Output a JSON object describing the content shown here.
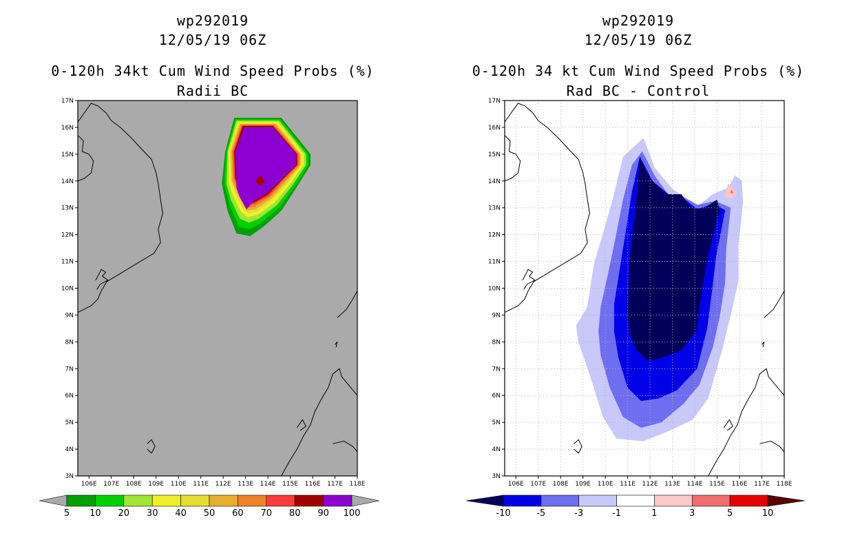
{
  "chart_data": [
    {
      "type": "filled-contour-map",
      "storm_id": "wp292019",
      "datetime": "12/05/19 06Z",
      "title": "0-120h 34kt Cum Wind Speed Probs (%)",
      "subtitle": "Radii BC",
      "xlabel": "",
      "ylabel": "",
      "xlim": [
        105.5,
        118
      ],
      "ylim": [
        3,
        17
      ],
      "x_ticks": [
        "106E",
        "107E",
        "108E",
        "109E",
        "110E",
        "111E",
        "112E",
        "113E",
        "114E",
        "115E",
        "116E",
        "117E",
        "118E"
      ],
      "y_ticks": [
        "3N",
        "4N",
        "5N",
        "6N",
        "7N",
        "8N",
        "9N",
        "10N",
        "11N",
        "12N",
        "13N",
        "14N",
        "15N",
        "16N",
        "17N"
      ],
      "background": "#aaaaaa",
      "colorbar": {
        "labels": [
          "5",
          "10",
          "20",
          "30",
          "40",
          "50",
          "60",
          "70",
          "80",
          "90",
          "100"
        ],
        "colors": [
          "#00a000",
          "#00d000",
          "#a0e632",
          "#f0f028",
          "#e6dc32",
          "#e6af2d",
          "#f08228",
          "#fa3c3c",
          "#a00000",
          "#8c00d2"
        ],
        "under_color": "#aaaaaa",
        "over_color": "#aaaaaa"
      },
      "regions": [
        {
          "level": 5,
          "color": "#00a000",
          "points": [
            [
              112.1,
              15.1
            ],
            [
              112.5,
              16.35
            ],
            [
              114.6,
              16.35
            ],
            [
              115.9,
              15.0
            ],
            [
              115.9,
              14.6
            ],
            [
              115.3,
              13.8
            ],
            [
              114.6,
              12.9
            ],
            [
              113.8,
              12.3
            ],
            [
              113.2,
              11.95
            ],
            [
              112.6,
              12.05
            ],
            [
              112.2,
              12.9
            ],
            [
              111.95,
              13.9
            ]
          ]
        },
        {
          "level": 10,
          "color": "#00d000",
          "points": [
            [
              112.15,
              15.1
            ],
            [
              112.55,
              16.3
            ],
            [
              114.55,
              16.3
            ],
            [
              115.8,
              15.0
            ],
            [
              115.8,
              14.6
            ],
            [
              115.2,
              13.8
            ],
            [
              114.5,
              13.0
            ],
            [
              113.7,
              12.45
            ],
            [
              113.2,
              12.2
            ],
            [
              112.7,
              12.3
            ],
            [
              112.3,
              13.1
            ],
            [
              112.05,
              13.9
            ]
          ]
        },
        {
          "level": 20,
          "color": "#a0e632",
          "points": [
            [
              112.2,
              15.1
            ],
            [
              112.6,
              16.25
            ],
            [
              114.5,
              16.25
            ],
            [
              115.7,
              15.0
            ],
            [
              115.7,
              14.6
            ],
            [
              115.1,
              13.85
            ],
            [
              114.4,
              13.1
            ],
            [
              113.6,
              12.6
            ],
            [
              113.15,
              12.45
            ],
            [
              112.75,
              12.6
            ],
            [
              112.35,
              13.3
            ],
            [
              112.15,
              13.9
            ]
          ]
        },
        {
          "level": 30,
          "color": "#f0f028",
          "points": [
            [
              112.25,
              15.1
            ],
            [
              112.65,
              16.2
            ],
            [
              114.45,
              16.2
            ],
            [
              115.6,
              15.0
            ],
            [
              115.6,
              14.6
            ],
            [
              115.0,
              13.9
            ],
            [
              114.3,
              13.2
            ],
            [
              113.55,
              12.75
            ],
            [
              113.1,
              12.65
            ],
            [
              112.8,
              12.85
            ],
            [
              112.45,
              13.45
            ],
            [
              112.25,
              13.95
            ]
          ]
        },
        {
          "level": 40,
          "color": "#e6dc32",
          "points": [
            [
              112.3,
              15.1
            ],
            [
              112.7,
              16.15
            ],
            [
              114.4,
              16.15
            ],
            [
              115.5,
              15.0
            ],
            [
              115.5,
              14.6
            ],
            [
              114.9,
              13.95
            ],
            [
              114.2,
              13.3
            ],
            [
              113.5,
              12.85
            ],
            [
              113.1,
              12.8
            ],
            [
              112.85,
              13.0
            ],
            [
              112.55,
              13.55
            ],
            [
              112.35,
              14.0
            ]
          ]
        },
        {
          "level": 50,
          "color": "#e6af2d",
          "points": [
            [
              112.35,
              15.1
            ],
            [
              112.75,
              16.12
            ],
            [
              114.35,
              16.12
            ],
            [
              115.45,
              15.0
            ],
            [
              115.45,
              14.6
            ],
            [
              114.85,
              14.0
            ],
            [
              114.15,
              13.35
            ],
            [
              113.45,
              12.95
            ],
            [
              113.05,
              12.9
            ],
            [
              112.9,
              13.1
            ],
            [
              112.6,
              13.6
            ],
            [
              112.4,
              14.0
            ]
          ]
        },
        {
          "level": 60,
          "color": "#f08228",
          "points": [
            [
              112.4,
              15.1
            ],
            [
              112.8,
              16.1
            ],
            [
              114.3,
              16.1
            ],
            [
              115.4,
              15.0
            ],
            [
              115.4,
              14.6
            ],
            [
              114.8,
              14.05
            ],
            [
              114.1,
              13.4
            ],
            [
              113.4,
              13.05
            ],
            [
              113.05,
              13.0
            ],
            [
              112.95,
              13.2
            ],
            [
              112.65,
              13.65
            ],
            [
              112.45,
              14.05
            ]
          ]
        },
        {
          "level": 70,
          "color": "#fa3c3c",
          "points": [
            [
              112.45,
              15.1
            ],
            [
              112.85,
              16.07
            ],
            [
              114.25,
              16.07
            ],
            [
              115.35,
              15.0
            ],
            [
              115.35,
              14.6
            ],
            [
              114.75,
              14.1
            ],
            [
              114.05,
              13.45
            ],
            [
              113.4,
              13.15
            ],
            [
              113.05,
              13.1
            ],
            [
              113.0,
              13.3
            ],
            [
              112.7,
              13.7
            ],
            [
              112.5,
              14.1
            ]
          ]
        },
        {
          "level": 80,
          "color": "#a00000",
          "points": [
            [
              112.5,
              15.1
            ],
            [
              112.88,
              16.05
            ],
            [
              114.22,
              16.05
            ],
            [
              115.3,
              15.0
            ],
            [
              115.3,
              14.6
            ],
            [
              114.72,
              14.12
            ],
            [
              114.0,
              13.5
            ],
            [
              113.38,
              13.2
            ],
            [
              113.05,
              13.15
            ],
            [
              113.02,
              13.35
            ],
            [
              112.72,
              13.75
            ],
            [
              112.55,
              14.1
            ]
          ]
        },
        {
          "level": 90,
          "color": "#8c00d2",
          "points": [
            [
              112.55,
              15.1
            ],
            [
              112.95,
              16.0
            ],
            [
              114.2,
              16.0
            ],
            [
              115.25,
              15.0
            ],
            [
              115.25,
              14.6
            ],
            [
              114.7,
              14.15
            ],
            [
              113.95,
              13.55
            ],
            [
              113.35,
              13.25
            ],
            [
              113.05,
              12.95
            ],
            [
              112.75,
              13.4
            ],
            [
              112.6,
              13.75
            ],
            [
              112.6,
              14.1
            ]
          ]
        },
        {
          "level": 100,
          "color": "#a00000",
          "points": [
            [
              113.65,
              14.2
            ],
            [
              113.85,
              14.0
            ],
            [
              113.65,
              13.8
            ],
            [
              113.45,
              14.0
            ]
          ]
        }
      ]
    },
    {
      "type": "filled-contour-map",
      "storm_id": "wp292019",
      "datetime": "12/05/19 06Z",
      "title": "0-120h 34 kt Cum Wind Speed Probs (%)",
      "subtitle": "Rad BC - Control",
      "xlabel": "",
      "ylabel": "",
      "xlim": [
        105.5,
        118
      ],
      "ylim": [
        3,
        17
      ],
      "x_ticks": [
        "106E",
        "107E",
        "108E",
        "109E",
        "110E",
        "111E",
        "112E",
        "113E",
        "114E",
        "115E",
        "116E",
        "117E",
        "118E"
      ],
      "y_ticks": [
        "3N",
        "4N",
        "5N",
        "6N",
        "7N",
        "8N",
        "9N",
        "10N",
        "11N",
        "12N",
        "13N",
        "14N",
        "15N",
        "16N",
        "17N"
      ],
      "background": "#ffffff",
      "colorbar": {
        "labels": [
          "-10",
          "-5",
          "-3",
          "-1",
          "1",
          "3",
          "5",
          "10"
        ],
        "colors": [
          "#0000e6",
          "#6e6ef0",
          "#c8c8fa",
          "#ffffff",
          "#fac8c8",
          "#f06e6e",
          "#e60000"
        ],
        "under_color": "#00005a",
        "over_color": "#5a0000"
      },
      "regions": [
        {
          "level": -1,
          "color": "#c8c8fa",
          "points": [
            [
              109.2,
              9.3
            ],
            [
              109.5,
              10.9
            ],
            [
              110.3,
              13.2
            ],
            [
              110.8,
              14.9
            ],
            [
              111.7,
              15.6
            ],
            [
              112.2,
              14.5
            ],
            [
              113.0,
              13.7
            ],
            [
              113.7,
              13.3
            ],
            [
              114.2,
              13.1
            ],
            [
              114.8,
              13.5
            ],
            [
              115.5,
              13.75
            ],
            [
              115.8,
              14.2
            ],
            [
              116.1,
              14.0
            ],
            [
              116.15,
              13.2
            ],
            [
              115.95,
              11.6
            ],
            [
              115.95,
              10.3
            ],
            [
              115.6,
              9.0
            ],
            [
              115.25,
              7.8
            ],
            [
              114.6,
              5.9
            ],
            [
              113.9,
              5.1
            ],
            [
              112.9,
              4.7
            ],
            [
              111.7,
              4.3
            ],
            [
              110.5,
              4.4
            ],
            [
              109.9,
              5.2
            ],
            [
              109.3,
              6.8
            ],
            [
              108.8,
              8.0
            ],
            [
              108.7,
              8.6
            ]
          ]
        },
        {
          "level": -3,
          "color": "#6e6ef0",
          "points": [
            [
              109.8,
              9.3
            ],
            [
              110.3,
              11.2
            ],
            [
              110.8,
              13.3
            ],
            [
              111.2,
              14.6
            ],
            [
              111.65,
              15.1
            ],
            [
              112.2,
              14.2
            ],
            [
              112.8,
              13.5
            ],
            [
              113.5,
              13.4
            ],
            [
              114.1,
              13.1
            ],
            [
              114.9,
              13.25
            ],
            [
              115.6,
              13.0
            ],
            [
              115.4,
              11.5
            ],
            [
              115.35,
              10.2
            ],
            [
              115.1,
              8.9
            ],
            [
              114.8,
              7.8
            ],
            [
              114.2,
              6.4
            ],
            [
              113.5,
              5.7
            ],
            [
              112.5,
              5.0
            ],
            [
              111.6,
              4.8
            ],
            [
              110.8,
              5.2
            ],
            [
              110.2,
              6.3
            ],
            [
              109.8,
              7.5
            ],
            [
              109.7,
              8.4
            ]
          ]
        },
        {
          "level": -5,
          "color": "#0000e6",
          "points": [
            [
              110.4,
              9.4
            ],
            [
              110.9,
              12.0
            ],
            [
              111.2,
              13.6
            ],
            [
              111.55,
              14.9
            ],
            [
              112.1,
              14.0
            ],
            [
              112.9,
              13.45
            ],
            [
              113.5,
              13.35
            ],
            [
              114.1,
              12.95
            ],
            [
              114.9,
              13.15
            ],
            [
              115.35,
              12.9
            ],
            [
              114.95,
              11.2
            ],
            [
              114.75,
              9.8
            ],
            [
              114.55,
              8.5
            ],
            [
              114.1,
              7.0
            ],
            [
              113.2,
              6.2
            ],
            [
              112.4,
              5.9
            ],
            [
              111.6,
              5.8
            ],
            [
              111.0,
              6.3
            ],
            [
              110.6,
              7.4
            ],
            [
              110.4,
              8.4
            ]
          ]
        },
        {
          "level": -10,
          "color": "#00005a",
          "points": [
            [
              111.0,
              9.0
            ],
            [
              111.1,
              11.2
            ],
            [
              111.35,
              12.8
            ],
            [
              111.55,
              14.8
            ],
            [
              112.0,
              14.1
            ],
            [
              112.7,
              13.5
            ],
            [
              113.4,
              13.5
            ],
            [
              113.8,
              13.0
            ],
            [
              114.35,
              12.95
            ],
            [
              115.0,
              13.3
            ],
            [
              115.1,
              12.9
            ],
            [
              114.6,
              11.3
            ],
            [
              114.35,
              10.1
            ],
            [
              114.05,
              8.4
            ],
            [
              113.4,
              7.7
            ],
            [
              112.5,
              7.4
            ],
            [
              111.9,
              7.3
            ],
            [
              111.4,
              7.7
            ],
            [
              111.1,
              8.3
            ]
          ]
        },
        {
          "level": 1,
          "color": "#fac8c8",
          "points": [
            [
              115.35,
              13.45
            ],
            [
              115.5,
              13.9
            ],
            [
              115.9,
              13.55
            ],
            [
              115.6,
              13.35
            ]
          ]
        },
        {
          "level": 3,
          "color": "#f06e6e",
          "points": [
            [
              115.58,
              13.55
            ],
            [
              115.65,
              13.68
            ],
            [
              115.72,
              13.55
            ]
          ]
        }
      ]
    }
  ]
}
